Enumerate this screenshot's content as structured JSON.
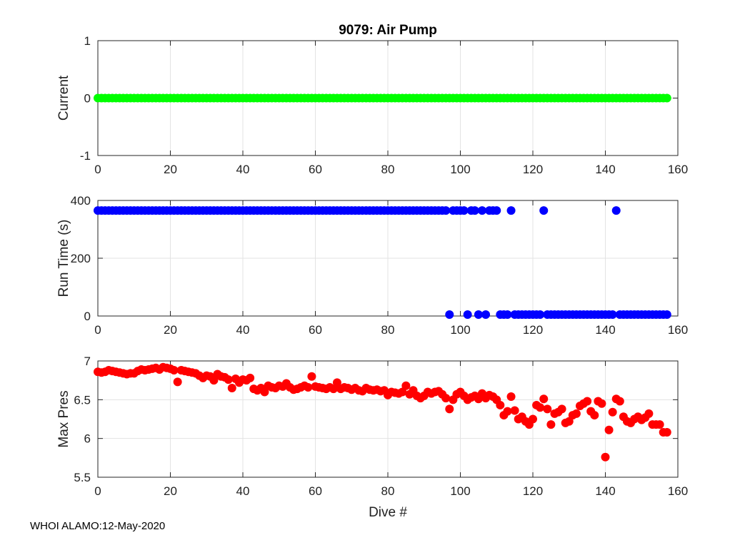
{
  "figure": {
    "title": "9079: Air Pump",
    "footer": "WHOI ALAMO:12-May-2020"
  },
  "chart_data": [
    {
      "type": "scatter",
      "title": "9079: Air Pump",
      "xlabel": "",
      "ylabel": "Current",
      "xlim": [
        0,
        160
      ],
      "ylim": [
        -1,
        1
      ],
      "xticks": [
        0,
        20,
        40,
        60,
        80,
        100,
        120,
        140,
        160
      ],
      "yticks": [
        -1,
        0,
        1
      ],
      "grid": true,
      "color": "#00ff00",
      "series": [
        {
          "name": "Current",
          "x": [
            0,
            1,
            2,
            3,
            4,
            5,
            6,
            7,
            8,
            9,
            10,
            11,
            12,
            13,
            14,
            15,
            16,
            17,
            18,
            19,
            20,
            21,
            22,
            23,
            24,
            25,
            26,
            27,
            28,
            29,
            30,
            31,
            32,
            33,
            34,
            35,
            36,
            37,
            38,
            39,
            40,
            41,
            42,
            43,
            44,
            45,
            46,
            47,
            48,
            49,
            50,
            51,
            52,
            53,
            54,
            55,
            56,
            57,
            58,
            59,
            60,
            61,
            62,
            63,
            64,
            65,
            66,
            67,
            68,
            69,
            70,
            71,
            72,
            73,
            74,
            75,
            76,
            77,
            78,
            79,
            80,
            81,
            82,
            83,
            84,
            85,
            86,
            87,
            88,
            89,
            90,
            91,
            92,
            93,
            94,
            95,
            96,
            97,
            98,
            99,
            100,
            101,
            102,
            103,
            104,
            105,
            106,
            107,
            108,
            109,
            110,
            111,
            112,
            113,
            114,
            115,
            116,
            117,
            118,
            119,
            120,
            121,
            122,
            123,
            124,
            125,
            126,
            127,
            128,
            129,
            130,
            131,
            132,
            133,
            134,
            135,
            136,
            137,
            138,
            139,
            140,
            141,
            142,
            143,
            144,
            145,
            146,
            147,
            148,
            149,
            150,
            151,
            152,
            153,
            154,
            155,
            156,
            157
          ],
          "y": [
            0,
            0,
            0,
            0,
            0,
            0,
            0,
            0,
            0,
            0,
            0,
            0,
            0,
            0,
            0,
            0,
            0,
            0,
            0,
            0,
            0,
            0,
            0,
            0,
            0,
            0,
            0,
            0,
            0,
            0,
            0,
            0,
            0,
            0,
            0,
            0,
            0,
            0,
            0,
            0,
            0,
            0,
            0,
            0,
            0,
            0,
            0,
            0,
            0,
            0,
            0,
            0,
            0,
            0,
            0,
            0,
            0,
            0,
            0,
            0,
            0,
            0,
            0,
            0,
            0,
            0,
            0,
            0,
            0,
            0,
            0,
            0,
            0,
            0,
            0,
            0,
            0,
            0,
            0,
            0,
            0,
            0,
            0,
            0,
            0,
            0,
            0,
            0,
            0,
            0,
            0,
            0,
            0,
            0,
            0,
            0,
            0,
            0,
            0,
            0,
            0,
            0,
            0,
            0,
            0,
            0,
            0,
            0,
            0,
            0,
            0,
            0,
            0,
            0,
            0,
            0,
            0,
            0,
            0,
            0,
            0,
            0,
            0,
            0,
            0,
            0,
            0,
            0,
            0,
            0,
            0,
            0,
            0,
            0,
            0,
            0,
            0,
            0,
            0,
            0,
            0,
            0,
            0,
            0,
            0,
            0,
            0,
            0,
            0,
            0,
            0,
            0,
            0,
            0,
            0,
            0,
            0,
            0
          ]
        }
      ]
    },
    {
      "type": "scatter",
      "title": "",
      "xlabel": "",
      "ylabel": "Run Time (s)",
      "xlim": [
        0,
        160
      ],
      "ylim": [
        0,
        400
      ],
      "xticks": [
        0,
        20,
        40,
        60,
        80,
        100,
        120,
        140,
        160
      ],
      "yticks": [
        0,
        200,
        400
      ],
      "grid": true,
      "color": "#0000ff",
      "series": [
        {
          "name": "Run Time",
          "x": [
            0,
            1,
            2,
            3,
            4,
            5,
            6,
            7,
            8,
            9,
            10,
            11,
            12,
            13,
            14,
            15,
            16,
            17,
            18,
            19,
            20,
            21,
            22,
            23,
            24,
            25,
            26,
            27,
            28,
            29,
            30,
            31,
            32,
            33,
            34,
            35,
            36,
            37,
            38,
            39,
            40,
            41,
            42,
            43,
            44,
            45,
            46,
            47,
            48,
            49,
            50,
            51,
            52,
            53,
            54,
            55,
            56,
            57,
            58,
            59,
            60,
            61,
            62,
            63,
            64,
            65,
            66,
            67,
            68,
            69,
            70,
            71,
            72,
            73,
            74,
            75,
            76,
            77,
            78,
            79,
            80,
            81,
            82,
            83,
            84,
            85,
            86,
            87,
            88,
            89,
            90,
            91,
            92,
            93,
            94,
            95,
            96,
            98,
            99,
            100,
            101,
            103,
            104,
            106,
            108,
            109,
            110,
            114,
            123,
            143,
            97,
            102,
            105,
            107,
            111,
            112,
            113,
            115,
            116,
            117,
            118,
            119,
            120,
            121,
            122,
            124,
            125,
            126,
            127,
            128,
            129,
            130,
            131,
            132,
            133,
            134,
            135,
            136,
            137,
            138,
            139,
            140,
            141,
            142,
            144,
            145,
            146,
            147,
            148,
            149,
            150,
            151,
            152,
            153,
            154,
            155,
            156,
            157
          ],
          "y": [
            365,
            365,
            365,
            365,
            365,
            365,
            365,
            365,
            365,
            365,
            365,
            365,
            365,
            365,
            365,
            365,
            365,
            365,
            365,
            365,
            365,
            365,
            365,
            365,
            365,
            365,
            365,
            365,
            365,
            365,
            365,
            365,
            365,
            365,
            365,
            365,
            365,
            365,
            365,
            365,
            365,
            365,
            365,
            365,
            365,
            365,
            365,
            365,
            365,
            365,
            365,
            365,
            365,
            365,
            365,
            365,
            365,
            365,
            365,
            365,
            365,
            365,
            365,
            365,
            365,
            365,
            365,
            365,
            365,
            365,
            365,
            365,
            365,
            365,
            365,
            365,
            365,
            365,
            365,
            365,
            365,
            365,
            365,
            365,
            365,
            365,
            365,
            365,
            365,
            365,
            365,
            365,
            365,
            365,
            365,
            365,
            365,
            365,
            365,
            365,
            365,
            365,
            365,
            365,
            365,
            365,
            365,
            365,
            365,
            365,
            5,
            5,
            5,
            5,
            5,
            5,
            5,
            5,
            5,
            5,
            5,
            5,
            5,
            5,
            5,
            5,
            5,
            5,
            5,
            5,
            5,
            5,
            5,
            5,
            5,
            5,
            5,
            5,
            5,
            5,
            5,
            5,
            5,
            5,
            5,
            5,
            5,
            5,
            5,
            5,
            5,
            5,
            5,
            5,
            5,
            5,
            5,
            5
          ]
        }
      ]
    },
    {
      "type": "scatter",
      "title": "",
      "xlabel": "Dive #",
      "ylabel": "Max Pres",
      "xlim": [
        0,
        160
      ],
      "ylim": [
        5.5,
        7
      ],
      "xticks": [
        0,
        20,
        40,
        60,
        80,
        100,
        120,
        140,
        160
      ],
      "yticks": [
        5.5,
        6,
        6.5,
        7
      ],
      "grid": true,
      "color": "#ff0000",
      "series": [
        {
          "name": "Max Pres",
          "x": [
            0,
            1,
            2,
            3,
            4,
            5,
            6,
            7,
            8,
            9,
            10,
            11,
            12,
            13,
            14,
            15,
            16,
            17,
            18,
            19,
            20,
            21,
            22,
            23,
            24,
            25,
            26,
            27,
            28,
            29,
            30,
            31,
            32,
            33,
            34,
            35,
            36,
            37,
            38,
            39,
            40,
            41,
            42,
            43,
            44,
            45,
            46,
            47,
            48,
            49,
            50,
            51,
            52,
            53,
            54,
            55,
            56,
            57,
            58,
            59,
            60,
            61,
            62,
            63,
            64,
            65,
            66,
            67,
            68,
            69,
            70,
            71,
            72,
            73,
            74,
            75,
            76,
            77,
            78,
            79,
            80,
            81,
            82,
            83,
            84,
            85,
            86,
            87,
            88,
            89,
            90,
            91,
            92,
            93,
            94,
            95,
            96,
            97,
            98,
            99,
            100,
            101,
            102,
            103,
            104,
            105,
            106,
            107,
            108,
            109,
            110,
            111,
            112,
            113,
            114,
            115,
            116,
            117,
            118,
            119,
            120,
            121,
            122,
            123,
            124,
            125,
            126,
            127,
            128,
            129,
            130,
            131,
            132,
            133,
            134,
            135,
            136,
            137,
            138,
            139,
            140,
            141,
            142,
            143,
            144,
            145,
            146,
            147,
            148,
            149,
            150,
            151,
            152,
            153,
            154,
            155,
            156,
            157
          ],
          "y": [
            6.86,
            6.85,
            6.86,
            6.88,
            6.87,
            6.86,
            6.85,
            6.84,
            6.83,
            6.84,
            6.84,
            6.87,
            6.89,
            6.88,
            6.89,
            6.9,
            6.91,
            6.89,
            6.92,
            6.91,
            6.9,
            6.88,
            6.73,
            6.88,
            6.87,
            6.86,
            6.85,
            6.84,
            6.81,
            6.78,
            6.81,
            6.8,
            6.75,
            6.83,
            6.8,
            6.79,
            6.76,
            6.65,
            6.77,
            6.72,
            6.76,
            6.75,
            6.78,
            6.64,
            6.62,
            6.65,
            6.6,
            6.68,
            6.66,
            6.65,
            6.68,
            6.67,
            6.71,
            6.66,
            6.63,
            6.64,
            6.66,
            6.68,
            6.66,
            6.8,
            6.67,
            6.66,
            6.65,
            6.64,
            6.66,
            6.64,
            6.72,
            6.64,
            6.66,
            6.65,
            6.63,
            6.65,
            6.62,
            6.61,
            6.65,
            6.63,
            6.62,
            6.63,
            6.61,
            6.62,
            6.56,
            6.6,
            6.59,
            6.58,
            6.6,
            6.68,
            6.57,
            6.62,
            6.55,
            6.52,
            6.55,
            6.6,
            6.58,
            6.6,
            6.61,
            6.57,
            6.52,
            6.38,
            6.5,
            6.57,
            6.6,
            6.55,
            6.5,
            6.53,
            6.55,
            6.51,
            6.58,
            6.52,
            6.56,
            6.54,
            6.5,
            6.43,
            6.3,
            6.35,
            6.54,
            6.36,
            6.25,
            6.28,
            6.22,
            6.18,
            6.25,
            6.43,
            6.4,
            6.51,
            6.38,
            6.18,
            6.32,
            6.34,
            6.38,
            6.2,
            6.22,
            6.3,
            6.32,
            6.42,
            6.45,
            6.48,
            6.35,
            6.3,
            6.48,
            6.45,
            5.76,
            6.11,
            6.34,
            6.51,
            6.48,
            6.28,
            6.22,
            6.2,
            6.25,
            6.28,
            6.24,
            6.27,
            6.32,
            6.18,
            6.18,
            6.18,
            6.08,
            6.08
          ]
        }
      ]
    }
  ]
}
